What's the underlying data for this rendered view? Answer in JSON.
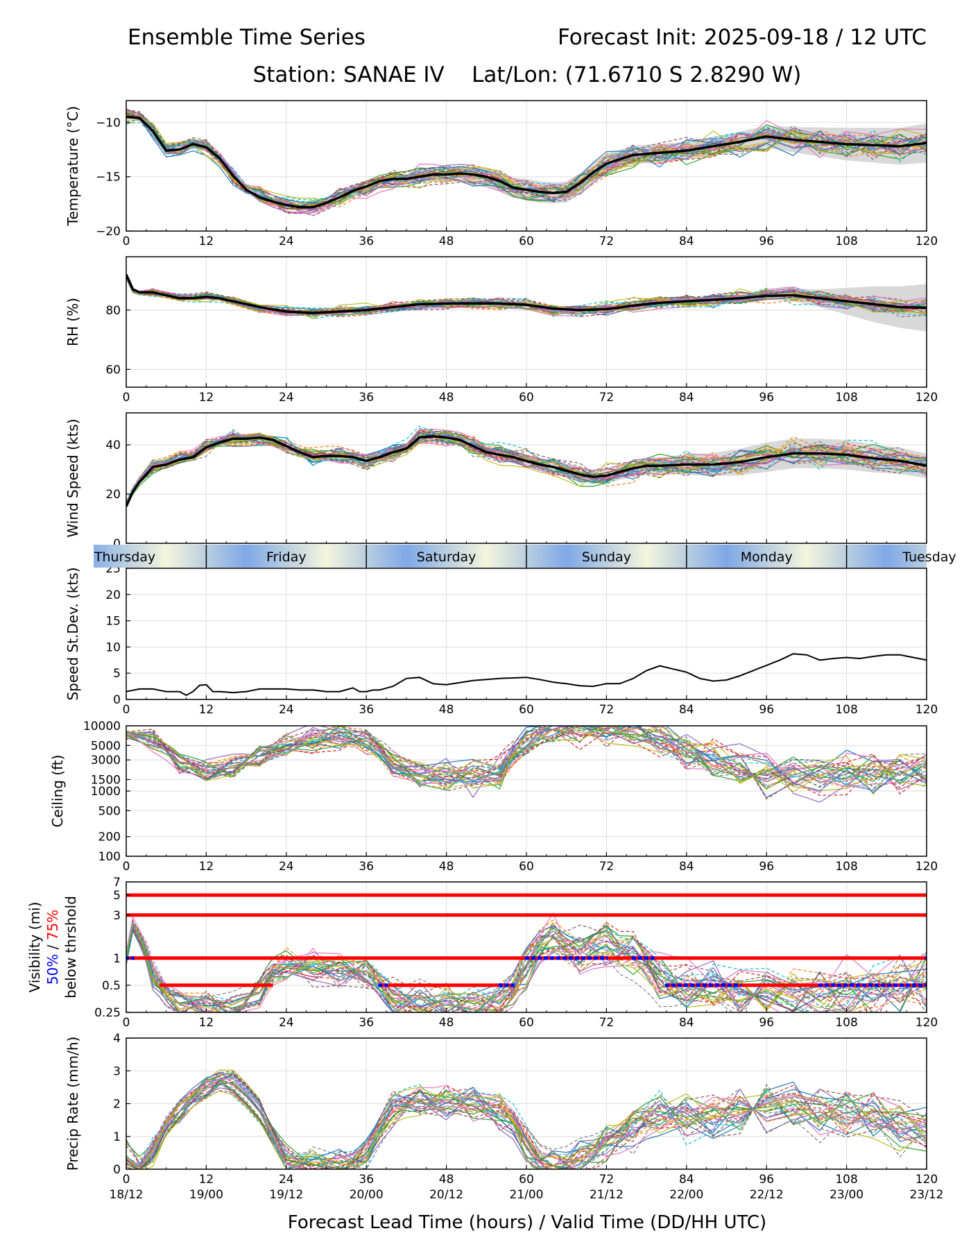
{
  "header": {
    "title_left": "Ensemble Time Series",
    "title_right": "Forecast Init: 2025-09-18 / 12 UTC",
    "subtitle": "Station: SANAE IV    Lat/Lon: (71.6710 S 2.8290 W)"
  },
  "xaxis": {
    "ticks": [
      "0",
      "12",
      "24",
      "36",
      "48",
      "60",
      "72",
      "84",
      "96",
      "108",
      "120"
    ],
    "valid_times": [
      "18/12",
      "19/00",
      "19/12",
      "20/00",
      "20/12",
      "21/00",
      "21/12",
      "22/00",
      "22/12",
      "23/00",
      "23/12"
    ],
    "label": "Forecast Lead Time (hours) / Valid Time (DD/HH UTC)"
  },
  "days": [
    "Thursday",
    "Friday",
    "Saturday",
    "Sunday",
    "Monday",
    "Tuesday"
  ],
  "colors": {
    "members": [
      "#1f77b4",
      "#ff7f0e",
      "#2ca02c",
      "#d62728",
      "#9467bd",
      "#8c564b",
      "#e377c2",
      "#7f7f7f",
      "#bcbd22",
      "#17becf"
    ],
    "mean": "#000000",
    "spread": "#d8d8d8",
    "p50": "#0000ff",
    "p75": "#ff0000",
    "day_band_light": "#f5f5dc",
    "day_band_dark": "#7fa8e6"
  },
  "visibility_label": {
    "line1": "Visibility (mi)",
    "p50": "50%",
    "sep": " / ",
    "p75": "75%",
    "line3": "below thrshold"
  },
  "chart_data": [
    {
      "type": "line",
      "id": "temperature",
      "ylabel": "Temperature (°C)",
      "ylim": [
        -20,
        -8
      ],
      "yticks": [
        -20,
        -15,
        -10
      ],
      "ytick_labels": [
        "−20",
        "−15",
        "−10"
      ],
      "scale": "linear",
      "mean": {
        "x": [
          0,
          2,
          4,
          6,
          8,
          10,
          12,
          14,
          16,
          18,
          20,
          22,
          24,
          26,
          28,
          30,
          32,
          34,
          36,
          38,
          40,
          42,
          44,
          46,
          48,
          50,
          52,
          54,
          56,
          58,
          60,
          62,
          64,
          66,
          68,
          70,
          72,
          76,
          80,
          84,
          88,
          92,
          96,
          100,
          104,
          108,
          112,
          116,
          120
        ],
        "y": [
          -9.5,
          -9.6,
          -10.8,
          -12.6,
          -12.5,
          -12.0,
          -12.3,
          -13.3,
          -14.9,
          -16.2,
          -16.9,
          -17.3,
          -17.6,
          -17.8,
          -17.8,
          -17.4,
          -16.9,
          -16.3,
          -15.9,
          -15.4,
          -15.2,
          -15.2,
          -15.0,
          -14.8,
          -14.8,
          -14.7,
          -14.8,
          -15.0,
          -15.4,
          -16.0,
          -16.2,
          -16.4,
          -16.5,
          -16.4,
          -15.6,
          -14.6,
          -13.8,
          -13.0,
          -12.8,
          -12.6,
          -12.2,
          -11.8,
          -11.3,
          -11.6,
          -11.8,
          -12.0,
          -12.1,
          -12.2,
          -11.9
        ]
      },
      "spread_width": {
        "x": [
          0,
          40,
          60,
          84,
          96,
          108,
          120
        ],
        "w": [
          0.3,
          0.4,
          1.0,
          0.8,
          1.0,
          1.5,
          1.8
        ]
      },
      "member_count": 30,
      "member_noise": 0.6
    },
    {
      "type": "line",
      "id": "rh",
      "ylabel": "RH (%)",
      "ylim": [
        54,
        98
      ],
      "yticks": [
        60,
        80
      ],
      "ytick_labels": [
        "60",
        "80"
      ],
      "scale": "linear",
      "mean": {
        "x": [
          0,
          1,
          2,
          4,
          6,
          8,
          10,
          12,
          14,
          16,
          18,
          20,
          24,
          28,
          32,
          36,
          40,
          44,
          48,
          52,
          56,
          60,
          64,
          68,
          72,
          76,
          80,
          84,
          88,
          92,
          96,
          100,
          104,
          108,
          112,
          116,
          120
        ],
        "y": [
          92,
          87,
          86,
          86,
          85,
          84,
          84,
          84.5,
          84,
          83,
          82,
          81,
          79.5,
          79,
          79.5,
          80,
          81,
          82,
          82.2,
          82.3,
          82.2,
          81.8,
          80.5,
          80,
          80.3,
          81.5,
          82.5,
          83,
          83.5,
          84,
          84.8,
          85,
          84,
          83,
          82,
          81,
          80.8
        ]
      },
      "spread_width": {
        "x": [
          0,
          60,
          96,
          104,
          112,
          120
        ],
        "w": [
          0.5,
          0.8,
          1.2,
          3,
          6,
          8
        ]
      },
      "member_count": 30,
      "member_noise": 1.2
    },
    {
      "type": "line",
      "id": "wind",
      "ylabel": "Wind Speed (kts)",
      "ylim": [
        0,
        53
      ],
      "yticks": [
        0,
        20,
        40
      ],
      "ytick_labels": [
        "0",
        "20",
        "40"
      ],
      "scale": "linear",
      "mean": {
        "x": [
          0,
          1,
          2,
          4,
          6,
          8,
          10,
          12,
          14,
          16,
          18,
          20,
          22,
          24,
          26,
          28,
          30,
          32,
          34,
          36,
          38,
          40,
          42,
          44,
          46,
          48,
          50,
          52,
          54,
          56,
          58,
          60,
          62,
          64,
          66,
          68,
          70,
          72,
          74,
          76,
          78,
          80,
          84,
          88,
          92,
          96,
          100,
          104,
          108,
          112,
          116,
          120
        ],
        "y": [
          15,
          21,
          25,
          31,
          32,
          34,
          35,
          39,
          41,
          42.5,
          42.5,
          43,
          42,
          39.5,
          37,
          35,
          35.5,
          35.5,
          35,
          33.5,
          35,
          37,
          38.5,
          43,
          43.5,
          43,
          42,
          39.5,
          37,
          36,
          35,
          33.5,
          32,
          31,
          29.5,
          28,
          27,
          27.5,
          29,
          30.5,
          31.5,
          31.5,
          32,
          32,
          33,
          35,
          36.5,
          36.5,
          36,
          34.5,
          33.5,
          31.5
        ]
      },
      "spread_width": {
        "x": [
          0,
          40,
          60,
          80,
          96,
          108,
          120
        ],
        "w": [
          1,
          1.5,
          2.5,
          3.5,
          6,
          6,
          5
        ]
      },
      "member_count": 30,
      "member_noise": 2.5
    },
    {
      "type": "line",
      "id": "stdev",
      "ylabel": "Speed St.Dev. (kts)",
      "ylim": [
        0,
        25
      ],
      "yticks": [
        0,
        5,
        10,
        15,
        20,
        25
      ],
      "ytick_labels": [
        "0",
        "5",
        "10",
        "15",
        "20",
        "25"
      ],
      "scale": "linear",
      "mean": {
        "x": [
          0,
          2,
          4,
          6,
          8,
          9,
          10,
          11,
          12,
          13,
          14,
          16,
          18,
          20,
          22,
          24,
          26,
          28,
          30,
          32,
          34,
          35,
          36,
          37,
          38,
          40,
          42,
          44,
          46,
          48,
          50,
          52,
          54,
          56,
          58,
          60,
          62,
          64,
          66,
          68,
          70,
          72,
          74,
          76,
          78,
          80,
          82,
          84,
          86,
          88,
          90,
          92,
          94,
          96,
          98,
          100,
          102,
          104,
          106,
          108,
          110,
          112,
          114,
          116,
          118,
          120
        ],
        "y": [
          1.5,
          2,
          2,
          1.5,
          1.5,
          0.8,
          1.5,
          2.7,
          2.8,
          1.5,
          1.5,
          1.3,
          1.5,
          2,
          2,
          2,
          1.8,
          1.8,
          1.5,
          1.5,
          2.2,
          1.5,
          1.5,
          1.8,
          1.8,
          2.5,
          4,
          4.2,
          3,
          2.8,
          3.2,
          3.6,
          3.8,
          4,
          4.1,
          4.2,
          3.8,
          3.3,
          3,
          2.6,
          2.5,
          3,
          3,
          4,
          5.5,
          6.4,
          5.8,
          5.2,
          4,
          3.5,
          3.7,
          4.5,
          5.5,
          6.5,
          7.5,
          8.7,
          8.5,
          7.5,
          7.8,
          8,
          7.8,
          8.2,
          8.5,
          8.5,
          8,
          7.5
        ]
      },
      "member_count": 0
    },
    {
      "type": "line",
      "id": "ceiling",
      "ylabel": "Ceiling (ft)",
      "ylim": [
        100,
        10000
      ],
      "yticks": [
        100,
        200,
        500,
        1000,
        1500,
        3000,
        5000,
        10000
      ],
      "ytick_labels": [
        "100",
        "200",
        "500",
        "1000",
        "1500",
        "3000",
        "5000",
        "10000"
      ],
      "scale": "log",
      "mean": {
        "x": [
          0,
          4,
          8,
          12,
          16,
          20,
          24,
          28,
          32,
          36,
          40,
          44,
          48,
          52,
          56,
          60,
          64,
          68,
          72,
          76,
          80,
          84,
          88,
          92,
          96,
          100,
          104,
          108,
          112,
          116,
          120
        ],
        "y": [
          8000,
          6000,
          3000,
          1900,
          2200,
          3500,
          5000,
          6000,
          7000,
          6000,
          2500,
          1700,
          1650,
          1700,
          1800,
          5000,
          9000,
          9500,
          9000,
          8500,
          6000,
          4000,
          2800,
          2200,
          1800,
          1800,
          1700,
          1800,
          1900,
          2000,
          2100
        ]
      },
      "member_count": 30,
      "member_noise": 0.15
    },
    {
      "type": "line",
      "id": "visibility",
      "ylabel": "Visibility (mi)",
      "ylim": [
        0.25,
        7
      ],
      "yticks": [
        0.25,
        0.5,
        1,
        3,
        5,
        7
      ],
      "ytick_labels": [
        "0.25",
        "0.5",
        "1",
        "3",
        "5",
        "7"
      ],
      "scale": "log",
      "thresholds": [
        5,
        3,
        1,
        0.5
      ],
      "mean": {
        "x": [
          0,
          1,
          2,
          4,
          6,
          8,
          12,
          16,
          20,
          22,
          24,
          28,
          32,
          36,
          38,
          40,
          44,
          48,
          52,
          56,
          58,
          60,
          62,
          64,
          66,
          68,
          70,
          72,
          74,
          76,
          78,
          80,
          82,
          84,
          88,
          92,
          96,
          100,
          104,
          108,
          112,
          116,
          120
        ],
        "y": [
          0.8,
          2,
          1.5,
          0.6,
          0.4,
          0.33,
          0.3,
          0.28,
          0.4,
          0.7,
          0.8,
          0.8,
          0.75,
          0.7,
          0.5,
          0.35,
          0.32,
          0.3,
          0.3,
          0.32,
          0.45,
          0.8,
          1.3,
          1.5,
          1.3,
          1.2,
          1.4,
          1.5,
          1.2,
          1.2,
          0.9,
          0.6,
          0.5,
          0.45,
          0.45,
          0.42,
          0.42,
          0.4,
          0.4,
          0.4,
          0.45,
          0.5,
          0.55
        ]
      },
      "member_count": 30,
      "member_noise": 0.14,
      "p50_segments": [
        [
          0,
          1,
          1
        ],
        [
          38,
          39,
          0.5
        ],
        [
          56,
          58,
          0.5
        ],
        [
          60,
          72,
          1
        ],
        [
          76,
          79,
          1
        ],
        [
          81,
          92,
          0.5
        ],
        [
          104,
          120,
          0.5
        ],
        [
          120,
          120,
          1
        ]
      ],
      "p75_segments": [
        [
          0,
          120,
          5
        ],
        [
          0,
          120,
          3
        ],
        [
          0,
          120,
          1
        ],
        [
          5,
          22,
          0.5
        ],
        [
          38,
          58,
          0.5
        ],
        [
          81,
          120,
          0.5
        ]
      ]
    },
    {
      "type": "line",
      "id": "precip",
      "ylabel": "Precip Rate (mm/h)",
      "ylim": [
        0,
        4
      ],
      "yticks": [
        0,
        1,
        2,
        3,
        4
      ],
      "ytick_labels": [
        "0",
        "1",
        "2",
        "3",
        "4"
      ],
      "scale": "linear",
      "mean": {
        "x": [
          0,
          1,
          2,
          4,
          6,
          8,
          10,
          12,
          14,
          16,
          18,
          20,
          22,
          24,
          26,
          28,
          30,
          32,
          34,
          36,
          38,
          40,
          42,
          44,
          46,
          48,
          50,
          52,
          54,
          56,
          58,
          60,
          62,
          64,
          66,
          68,
          70,
          72,
          74,
          76,
          78,
          80,
          82,
          84,
          88,
          92,
          96,
          100,
          104,
          108,
          112,
          116,
          120
        ],
        "y": [
          0.5,
          0.3,
          0.1,
          0.5,
          1.3,
          1.8,
          2.2,
          2.5,
          2.7,
          2.6,
          2.2,
          1.7,
          1.0,
          0.3,
          0.2,
          0.15,
          0.15,
          0.15,
          0.2,
          0.5,
          1.2,
          1.8,
          2.0,
          2.1,
          2.0,
          2.0,
          2.0,
          2.0,
          1.9,
          1.8,
          1.5,
          0.8,
          0.3,
          0.15,
          0.15,
          0.3,
          0.5,
          0.8,
          1.0,
          1.3,
          1.5,
          1.6,
          1.6,
          1.6,
          1.7,
          1.8,
          1.9,
          1.9,
          1.8,
          1.7,
          1.6,
          1.4,
          1.2
        ]
      },
      "member_count": 30,
      "member_noise": 0.35
    }
  ]
}
